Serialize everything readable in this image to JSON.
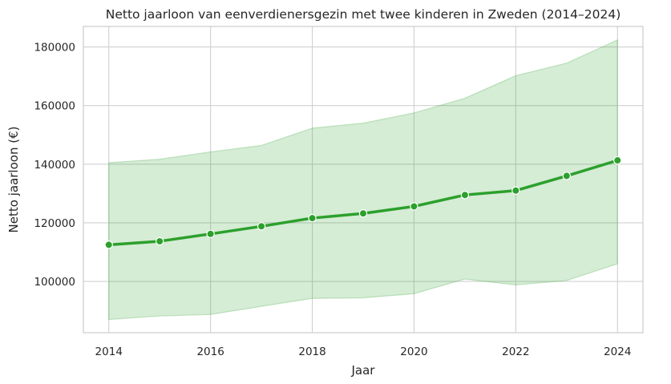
{
  "chart_data": {
    "type": "line",
    "title": "Netto jaarloon van eenverdienersgezin met twee kinderen in Zweden (2014–2024)",
    "xlabel": "Jaar",
    "ylabel": "Netto jaarloon (€)",
    "x": [
      2014,
      2015,
      2016,
      2017,
      2018,
      2019,
      2020,
      2021,
      2022,
      2023,
      2024
    ],
    "series": [
      {
        "values": [
          112500,
          113700,
          116200,
          118800,
          121600,
          123200,
          125600,
          129500,
          131000,
          136000,
          141300
        ],
        "lower": [
          87000,
          88200,
          88700,
          91500,
          94200,
          94400,
          95800,
          100800,
          98800,
          100300,
          106000
        ],
        "upper": [
          140500,
          141700,
          144200,
          146400,
          152300,
          154000,
          157500,
          162500,
          170200,
          174500,
          182400
        ]
      }
    ],
    "xticks": [
      "2014",
      "2016",
      "2018",
      "2020",
      "2022",
      "2024"
    ],
    "yticks": [
      "100000",
      "120000",
      "140000",
      "160000",
      "180000"
    ],
    "xlim": [
      2013.5,
      2024.5
    ],
    "ylim": [
      82500,
      187000
    ],
    "grid": true,
    "colors": {
      "line": "#2ca02c",
      "band": "#2ca02c"
    }
  }
}
